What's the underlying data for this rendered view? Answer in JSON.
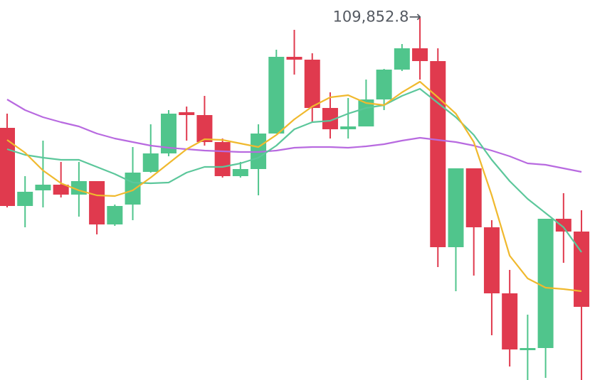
{
  "chart_data": {
    "type": "candlestick",
    "ylim": [
      104750,
      110100
    ],
    "up_color": "#50c58c",
    "down_color": "#e03a4e",
    "open": [
      108300,
      107200,
      107420,
      107500,
      107360,
      107550,
      106940,
      107220,
      107680,
      107940,
      108520,
      108480,
      108100,
      107620,
      107720,
      108220,
      109300,
      109260,
      108580,
      108280,
      108320,
      108700,
      109120,
      109420,
      109240,
      106620,
      107730,
      106900,
      105970,
      105170,
      105200,
      107020,
      106840
    ],
    "high": [
      108500,
      107620,
      108120,
      107820,
      107820,
      107550,
      107220,
      108030,
      108350,
      108550,
      108600,
      108750,
      108150,
      107820,
      108350,
      109400,
      109680,
      109350,
      108800,
      108720,
      108980,
      109130,
      109480,
      109852.8,
      109420,
      107730,
      107730,
      107000,
      106300,
      105670,
      107020,
      107380,
      107140
    ],
    "low": [
      107180,
      106900,
      107180,
      107320,
      107050,
      106800,
      106920,
      107000,
      107670,
      107900,
      108120,
      108050,
      107600,
      107600,
      107350,
      108220,
      109050,
      108380,
      108150,
      108150,
      108320,
      108550,
      109100,
      108980,
      106340,
      106000,
      106220,
      105380,
      104940,
      104750,
      104780,
      106400,
      104750
    ],
    "close": [
      107200,
      107400,
      107500,
      107360,
      107550,
      106940,
      107200,
      107670,
      107940,
      108500,
      108480,
      108100,
      107620,
      107720,
      108220,
      109300,
      109260,
      108580,
      108280,
      108320,
      108700,
      109120,
      109420,
      109240,
      106620,
      107730,
      106900,
      105970,
      105180,
      105200,
      107020,
      106840,
      105780
    ],
    "series": [
      {
        "color": "#b86ae0",
        "values": [
          108700,
          108550,
          108450,
          108380,
          108320,
          108220,
          108150,
          108100,
          108050,
          108020,
          108000,
          107980,
          107970,
          107960,
          107960,
          107980,
          108020,
          108030,
          108030,
          108020,
          108040,
          108070,
          108120,
          108160,
          108130,
          108100,
          108050,
          107980,
          107900,
          107800,
          107780,
          107730,
          107680
        ]
      },
      {
        "color": "#5cc79b",
        "values": [
          108000,
          107920,
          107880,
          107850,
          107850,
          107750,
          107650,
          107530,
          107520,
          107530,
          107670,
          107750,
          107750,
          107800,
          107880,
          108050,
          108280,
          108380,
          108400,
          108500,
          108580,
          108620,
          108750,
          108850,
          108650,
          108450,
          108200,
          107850,
          107550,
          107300,
          107100,
          106900,
          106550
        ]
      },
      {
        "color": "#f0b92e",
        "values": [
          108130,
          107950,
          107700,
          107520,
          107420,
          107350,
          107340,
          107420,
          107600,
          107800,
          108000,
          108140,
          108130,
          108080,
          108030,
          108200,
          108420,
          108600,
          108730,
          108760,
          108650,
          108620,
          108800,
          108950,
          108730,
          108500,
          108100,
          107350,
          106500,
          106180,
          106050,
          106030,
          106000
        ]
      }
    ],
    "annotation": {
      "label": "109,852.8→",
      "value": 109852.8,
      "index": 23
    }
  }
}
